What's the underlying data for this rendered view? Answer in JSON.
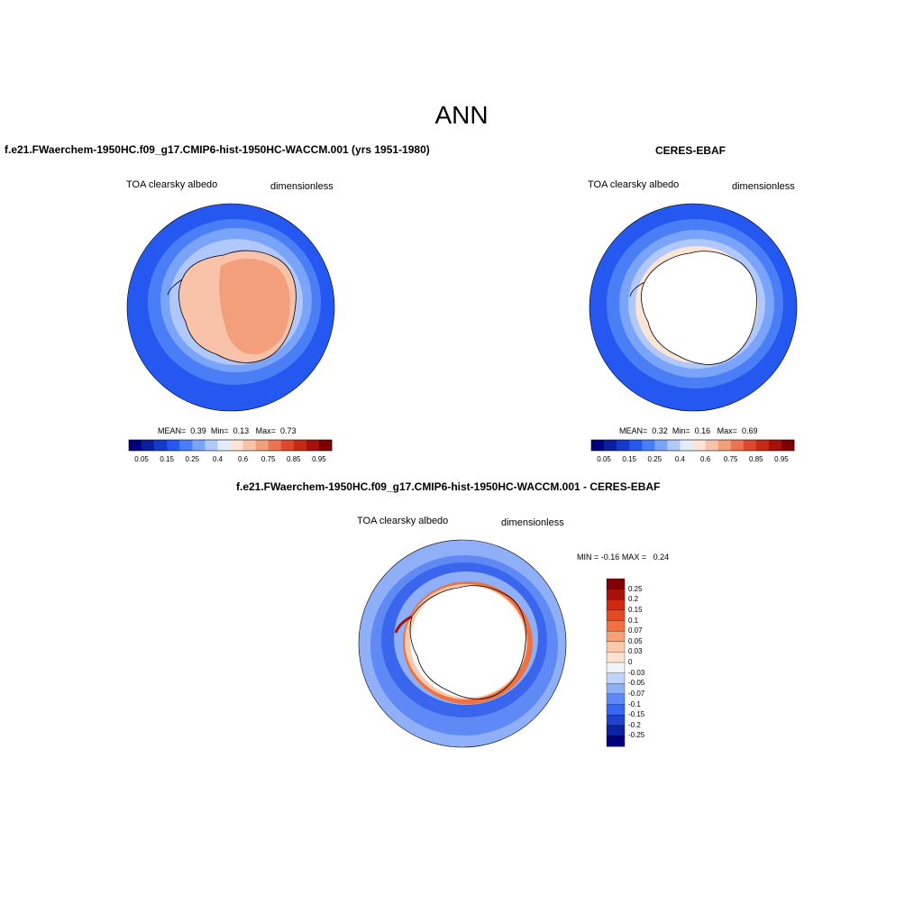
{
  "title": "ANN",
  "panels": [
    {
      "title": "f.e21.FWaerchem-1950HC.f09_g17.CMIP6-hist-1950HC-WACCM.001 (yrs 1951-1980)",
      "left_label": "TOA clearsky albedo",
      "right_label": "dimensionless",
      "stats": {
        "mean_label": "MEAN=",
        "mean": "0.39",
        "min_label": "Min=",
        "min": "0.13",
        "max_label": "Max=",
        "max": "0.73"
      },
      "colorbar_ticks": [
        "0.05",
        "0.15",
        "0.25",
        "0.4",
        "0.6",
        "0.75",
        "0.85",
        "0.95"
      ]
    },
    {
      "title": "CERES-EBAF",
      "left_label": "TOA clearsky albedo",
      "right_label": "dimensionless",
      "stats": {
        "mean_label": "MEAN=",
        "mean": "0.32",
        "min_label": "Min=",
        "min": "0.16",
        "max_label": "Max=",
        "max": "0.69"
      },
      "colorbar_ticks": [
        "0.05",
        "0.15",
        "0.25",
        "0.4",
        "0.6",
        "0.75",
        "0.85",
        "0.95"
      ]
    },
    {
      "title": "f.e21.FWaerchem-1950HC.f09_g17.CMIP6-hist-1950HC-WACCM.001 - CERES-EBAF",
      "left_label": "TOA clearsky albedo",
      "right_label": "dimensionless",
      "stats": {
        "min_label": "MIN =",
        "min": "-0.16",
        "max_label": "MAX =",
        "max": "0.24"
      },
      "colorbar_ticks": [
        "0.25",
        "0.2",
        "0.15",
        "0.1",
        "0.07",
        "0.05",
        "0.03",
        "0",
        "-0.03",
        "-0.05",
        "-0.07",
        "-0.1",
        "-0.15",
        "-0.2",
        "-0.25"
      ]
    }
  ],
  "colors": {
    "abs_scale": [
      "#00007f",
      "#0a1fa0",
      "#1438c8",
      "#2458f0",
      "#4a7ef7",
      "#7aa4fa",
      "#b0c8fb",
      "#e3eefd",
      "#fde4d6",
      "#f8c3a8",
      "#f39f7c",
      "#ec7452",
      "#e0482e",
      "#c82816",
      "#a61209",
      "#7f0000"
    ],
    "diff_scale": [
      "#7f0000",
      "#a61209",
      "#d02a12",
      "#e34a22",
      "#ef7040",
      "#f4a079",
      "#f9c9ad",
      "#fde0cf",
      "#eef3fd",
      "#c0d4fb",
      "#8fb0f9",
      "#5f89f5",
      "#3a66ee",
      "#1f42cf",
      "#0c22a3",
      "#00007f"
    ]
  }
}
